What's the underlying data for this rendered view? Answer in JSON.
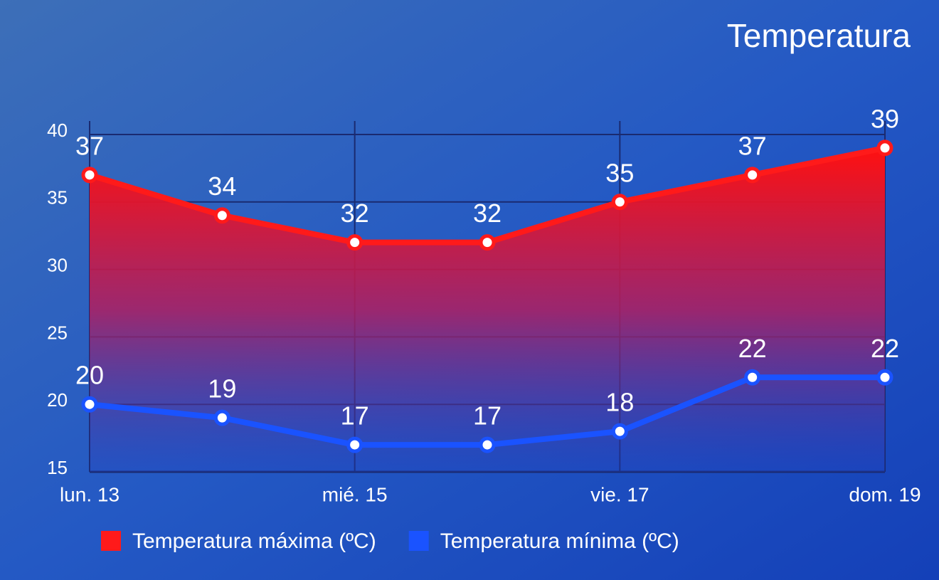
{
  "chart_data": {
    "type": "line",
    "title": "Temperatura",
    "categories": [
      "lun. 13",
      null,
      "mié. 15",
      null,
      "vie. 17",
      null,
      "dom. 19"
    ],
    "series": [
      {
        "name": "Temperatura máxima (ºC)",
        "color": "#ff1a1a",
        "values": [
          37,
          34,
          32,
          32,
          35,
          37,
          39
        ]
      },
      {
        "name": "Temperatura mínima (ºC)",
        "color": "#1a53ff",
        "values": [
          20,
          19,
          17,
          17,
          18,
          22,
          22
        ]
      }
    ],
    "ylim": [
      15,
      41
    ],
    "yticks": [
      15,
      20,
      25,
      30,
      35,
      40
    ],
    "grid": true
  }
}
